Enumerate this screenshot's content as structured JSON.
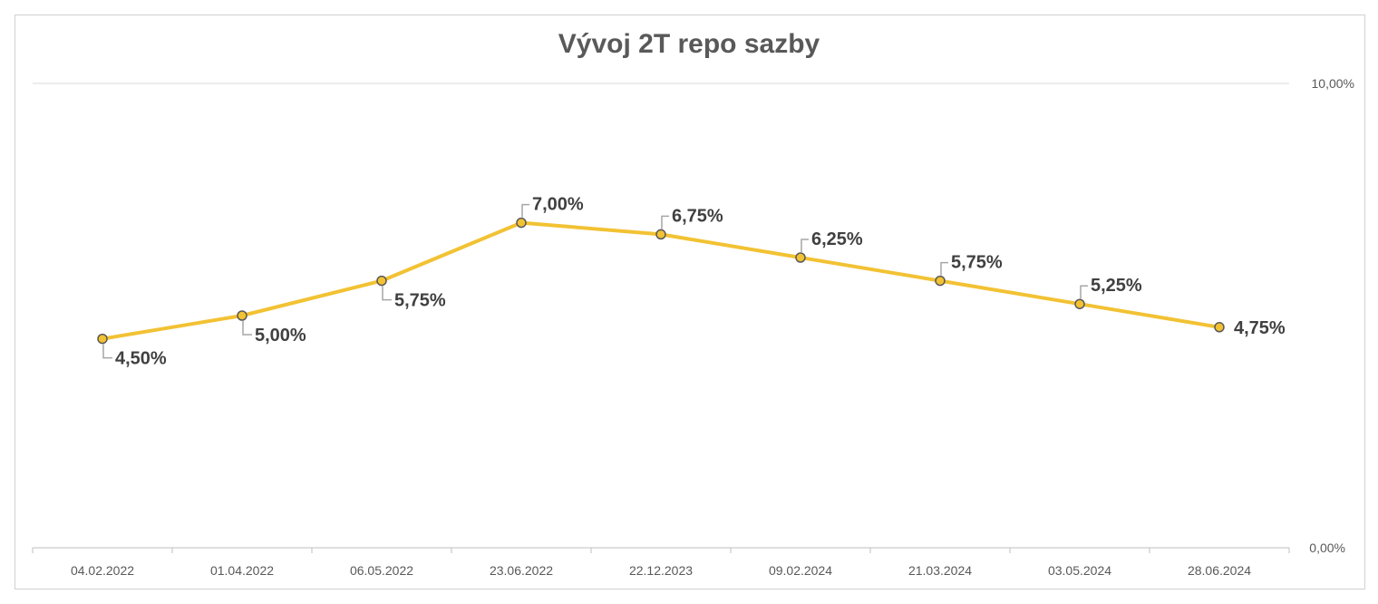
{
  "chart_data": {
    "type": "line",
    "title": "Vývoj 2T repo sazby",
    "categories": [
      "04.02.2022",
      "01.04.2022",
      "06.05.2022",
      "23.06.2022",
      "22.12.2023",
      "09.02.2024",
      "21.03.2024",
      "03.05.2024",
      "28.06.2024"
    ],
    "series": [
      {
        "values": [
          4.5,
          5.0,
          5.75,
          7.0,
          6.75,
          6.25,
          5.75,
          5.25,
          4.75
        ],
        "labels": [
          "4,50%",
          "5,00%",
          "5,75%",
          "7,00%",
          "6,75%",
          "6,25%",
          "5,75%",
          "5,25%",
          "4,75%"
        ],
        "label_side": [
          "below",
          "below",
          "below",
          "above",
          "above",
          "above",
          "above",
          "above",
          "right"
        ],
        "color": "#F2C233"
      }
    ],
    "ylim": [
      0,
      10
    ],
    "y_ticks": [
      "10,00%",
      "0,00%"
    ],
    "y_axis_side": "right",
    "grid": true,
    "legend": "none"
  }
}
